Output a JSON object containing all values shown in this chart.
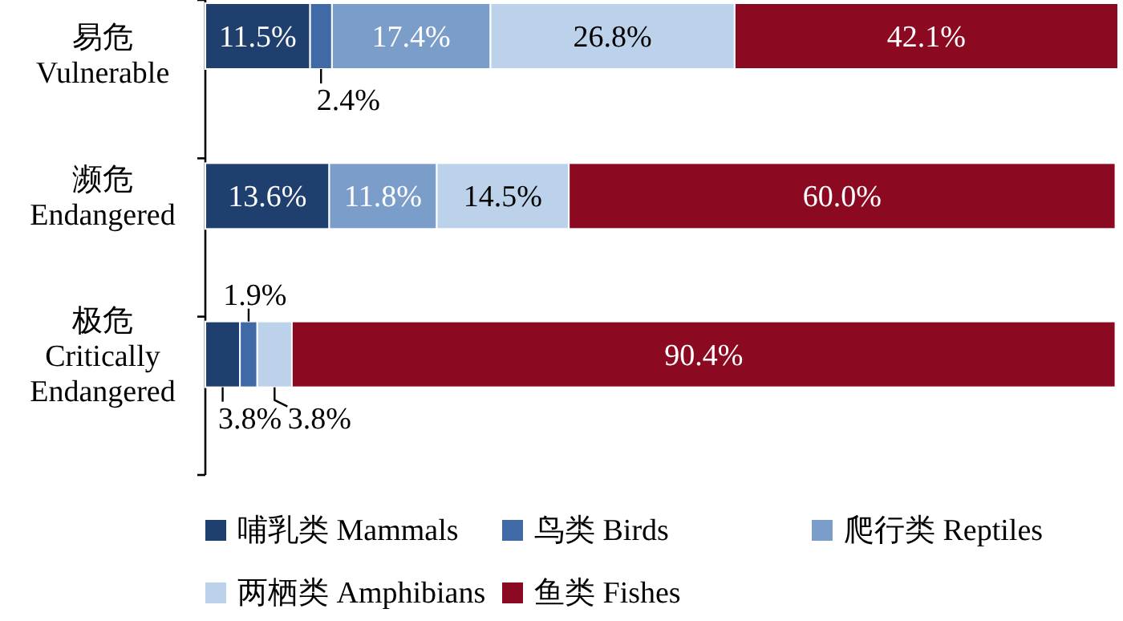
{
  "chart_data": {
    "type": "bar",
    "orientation": "horizontal",
    "stacked": true,
    "legend": "bottom",
    "categories": [
      "易危 Vulnerable",
      "濒危 Endangered",
      "极危 Critically Endangered"
    ],
    "series": [
      {
        "name": "哺乳类 Mammals",
        "color": "#1f3f6e",
        "values": [
          11.5,
          13.6,
          3.8
        ],
        "value_labels": [
          "11.5%",
          "13.6%",
          "3.8%"
        ]
      },
      {
        "name": "鸟类 Birds",
        "color": "#3f6aa5",
        "values": [
          2.4,
          null,
          1.9
        ],
        "value_labels": [
          "2.4%",
          null,
          "1.9%"
        ]
      },
      {
        "name": "爬行类 Reptiles",
        "color": "#7b9dca",
        "values": [
          17.4,
          11.8,
          null
        ],
        "value_labels": [
          "17.4%",
          "11.8%",
          null
        ]
      },
      {
        "name": "两栖类 Amphibians",
        "color": "#bcd2ea",
        "values": [
          26.8,
          14.5,
          3.8
        ],
        "value_labels": [
          "26.8%",
          "14.5%",
          "3.8%"
        ]
      },
      {
        "name": "鱼类 Fishes",
        "color": "#8b0a22",
        "values": [
          42.1,
          60.0,
          90.4
        ],
        "value_labels": [
          "42.1%",
          "60.0%",
          "90.4%"
        ]
      }
    ]
  }
}
